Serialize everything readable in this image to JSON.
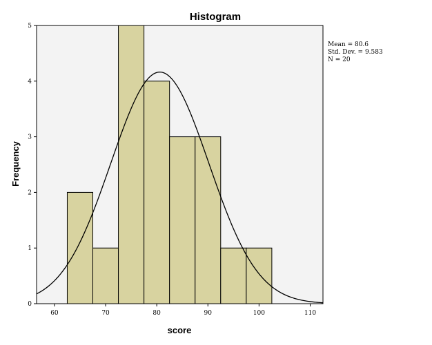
{
  "chart_data": {
    "type": "bar",
    "title": "Histogram",
    "xlabel": "score",
    "ylabel": "Frequency",
    "xlim": [
      56.5,
      112.5
    ],
    "ylim": [
      0,
      5
    ],
    "x_ticks": [
      60,
      70,
      80,
      90,
      100,
      110
    ],
    "y_ticks": [
      0,
      1,
      2,
      3,
      4,
      5
    ],
    "bins": [
      {
        "from": 62.5,
        "to": 67.5,
        "count": 2
      },
      {
        "from": 67.5,
        "to": 72.5,
        "count": 1
      },
      {
        "from": 72.5,
        "to": 77.5,
        "count": 5
      },
      {
        "from": 77.5,
        "to": 82.5,
        "count": 4
      },
      {
        "from": 82.5,
        "to": 87.5,
        "count": 3
      },
      {
        "from": 87.5,
        "to": 92.5,
        "count": 3
      },
      {
        "from": 92.5,
        "to": 97.5,
        "count": 1
      },
      {
        "from": 97.5,
        "to": 102.5,
        "count": 1
      }
    ],
    "normal_curve": {
      "mean": 80.6,
      "sd": 9.583,
      "n": 20,
      "bin_width": 5
    },
    "stats": {
      "mean_label": "Mean = 80.6",
      "sd_label": "Std. Dev. = 9.583",
      "n_label": "N = 20"
    },
    "colors": {
      "plot_background": "#f3f3f3",
      "bar_fill": "#d8d3a0",
      "bar_stroke": "#000000",
      "curve": "#000000"
    },
    "grid": false,
    "legend": "none"
  }
}
